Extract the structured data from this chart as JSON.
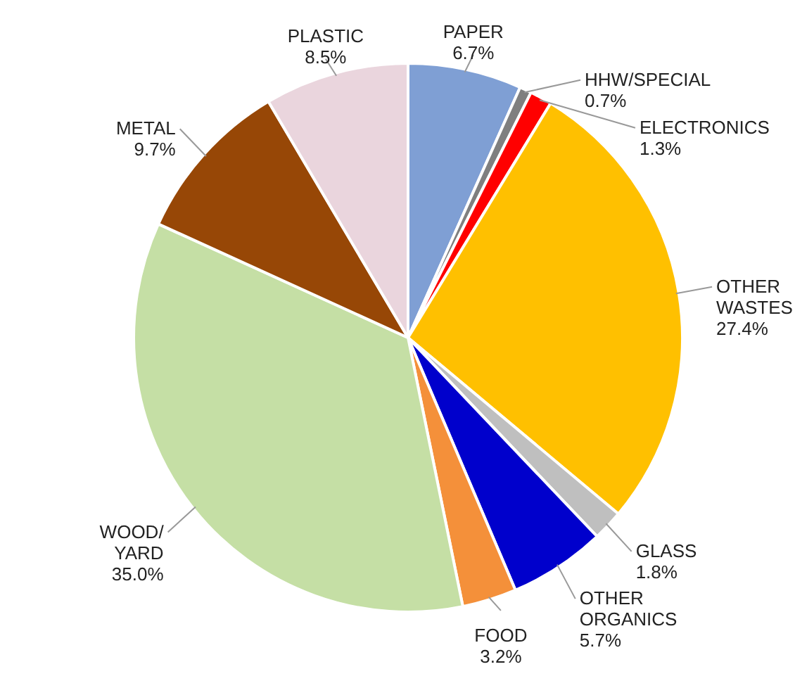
{
  "chart_data": {
    "type": "pie",
    "categories": [
      "PAPER",
      "HHW/SPECIAL",
      "ELECTRONICS",
      "OTHER\nWASTES",
      "GLASS",
      "OTHER\nORGANICS",
      "FOOD",
      "WOOD/\nYARD",
      "METAL",
      "PLASTIC"
    ],
    "values": [
      6.7,
      0.7,
      1.3,
      27.4,
      1.8,
      5.7,
      3.2,
      35.0,
      9.7,
      8.5
    ],
    "value_labels": [
      "6.7%",
      "0.7%",
      "1.3%",
      "27.4%",
      "1.8%",
      "5.7%",
      "3.2%",
      "35.0%",
      "9.7%",
      "8.5%"
    ],
    "colors": [
      "#7f9fd4",
      "#7f7f7f",
      "#ff0000",
      "#ffc000",
      "#bfbfbf",
      "#0000cc",
      "#f4903a",
      "#c5dfa5",
      "#974706",
      "#ead5dd"
    ]
  }
}
